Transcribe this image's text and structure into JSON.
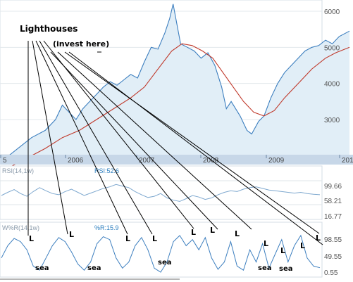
{
  "chart_data": {
    "type": "line",
    "main": {
      "x_ticks": [
        "5",
        "2006",
        "2007",
        "2008",
        "2009",
        "201"
      ],
      "y_ticks": [
        "6000",
        "5000",
        "4000",
        "3000"
      ],
      "series": [
        {
          "values": [
            [
              2005.0,
              1900
            ],
            [
              2005.2,
              2200
            ],
            [
              2005.4,
              2500
            ],
            [
              2005.6,
              2700
            ],
            [
              2005.75,
              3000
            ],
            [
              2005.85,
              3400
            ],
            [
              2005.95,
              3200
            ],
            [
              2006.05,
              3000
            ],
            [
              2006.15,
              3300
            ],
            [
              2006.25,
              3500
            ],
            [
              2006.35,
              3700
            ],
            [
              2006.45,
              3900
            ],
            [
              2006.55,
              4050
            ],
            [
              2006.65,
              3950
            ],
            [
              2006.75,
              4100
            ],
            [
              2006.85,
              4250
            ],
            [
              2006.95,
              4150
            ],
            [
              2007.05,
              4600
            ],
            [
              2007.15,
              5000
            ],
            [
              2007.25,
              4950
            ],
            [
              2007.35,
              5400
            ],
            [
              2007.42,
              5800
            ],
            [
              2007.47,
              6200
            ],
            [
              2007.52,
              5700
            ],
            [
              2007.58,
              5100
            ],
            [
              2007.68,
              5000
            ],
            [
              2007.78,
              4900
            ],
            [
              2007.88,
              4700
            ],
            [
              2007.98,
              4850
            ],
            [
              2008.08,
              4500
            ],
            [
              2008.18,
              3900
            ],
            [
              2008.25,
              3300
            ],
            [
              2008.32,
              3500
            ],
            [
              2008.45,
              3100
            ],
            [
              2008.55,
              2700
            ],
            [
              2008.62,
              2600
            ],
            [
              2008.72,
              2950
            ],
            [
              2008.8,
              3100
            ],
            [
              2008.9,
              3600
            ],
            [
              2009.0,
              4000
            ],
            [
              2009.1,
              4300
            ],
            [
              2009.2,
              4500
            ],
            [
              2009.3,
              4700
            ],
            [
              2009.4,
              4900
            ],
            [
              2009.5,
              5000
            ],
            [
              2009.6,
              5050
            ],
            [
              2009.7,
              5200
            ],
            [
              2009.8,
              5100
            ],
            [
              2009.9,
              5300
            ],
            [
              2010.05,
              5450
            ]
          ]
        },
        {
          "values": [
            [
              2005.0,
              1600
            ],
            [
              2005.3,
              1900
            ],
            [
              2005.6,
              2200
            ],
            [
              2005.85,
              2500
            ],
            [
              2006.1,
              2700
            ],
            [
              2006.35,
              3000
            ],
            [
              2006.6,
              3300
            ],
            [
              2006.85,
              3600
            ],
            [
              2007.05,
              3900
            ],
            [
              2007.25,
              4400
            ],
            [
              2007.45,
              4900
            ],
            [
              2007.6,
              5100
            ],
            [
              2007.75,
              5050
            ],
            [
              2007.9,
              4900
            ],
            [
              2008.05,
              4700
            ],
            [
              2008.2,
              4300
            ],
            [
              2008.35,
              3900
            ],
            [
              2008.5,
              3500
            ],
            [
              2008.65,
              3200
            ],
            [
              2008.8,
              3100
            ],
            [
              2008.95,
              3250
            ],
            [
              2009.1,
              3600
            ],
            [
              2009.3,
              4000
            ],
            [
              2009.5,
              4400
            ],
            [
              2009.7,
              4700
            ],
            [
              2009.85,
              4850
            ],
            [
              2010.05,
              5000
            ]
          ]
        }
      ]
    },
    "rsi": {
      "label": "RSI(14,1w)",
      "value_text": "RSI:52.6",
      "ticks": [
        "99.66",
        "58.21",
        "16.77"
      ],
      "values": [
        50,
        58,
        65,
        55,
        48,
        60,
        70,
        62,
        55,
        52,
        60,
        66,
        58,
        50,
        56,
        62,
        68,
        72,
        78,
        74,
        70,
        60,
        52,
        45,
        48,
        55,
        44,
        38,
        35,
        42,
        50,
        46,
        40,
        44,
        52,
        58,
        62,
        60,
        66,
        70,
        72,
        68,
        64,
        62,
        60,
        58,
        56,
        58,
        55,
        53,
        52
      ]
    },
    "wr": {
      "label": "W%R(14,1w)",
      "value_text": "%R:15.9",
      "ticks": [
        "98.55",
        "49.55",
        "0.55"
      ],
      "values": [
        40,
        70,
        88,
        80,
        60,
        20,
        10,
        40,
        70,
        90,
        80,
        55,
        25,
        10,
        30,
        75,
        92,
        85,
        40,
        15,
        30,
        70,
        90,
        60,
        15,
        5,
        30,
        80,
        95,
        70,
        85,
        60,
        90,
        40,
        12,
        30,
        80,
        20,
        10,
        60,
        30,
        75,
        15,
        50,
        85,
        30,
        70,
        95,
        40,
        20,
        16
      ]
    },
    "annotations": {
      "lighthouses": "Lighthouses",
      "invest": "(invest here)",
      "marker": "L",
      "sea": "sea"
    }
  }
}
